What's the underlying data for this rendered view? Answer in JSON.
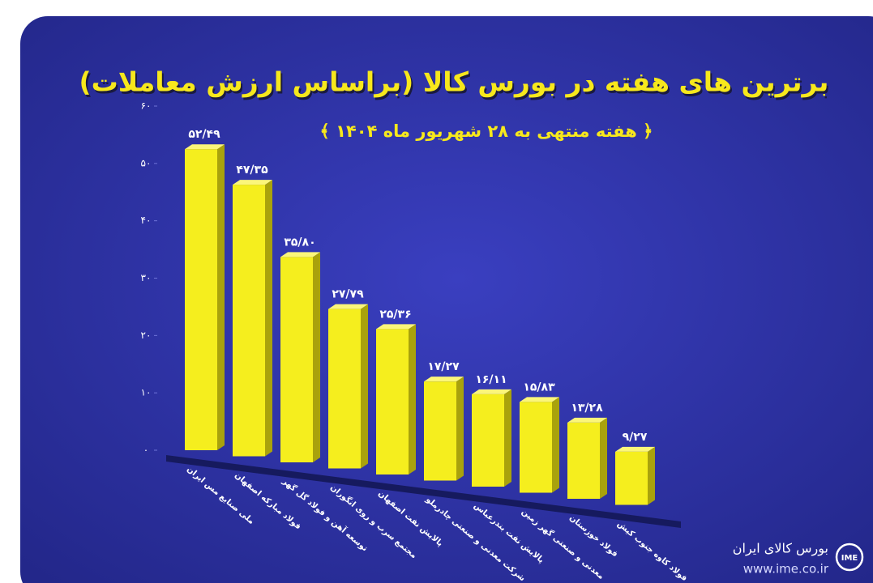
{
  "chart_data": {
    "type": "bar",
    "title": "برترین های هفته در بورس کالا (براساس ارزش معاملات)",
    "subtitle": "﴾ هفته منتهی به ۲۸ شهریور ماه ۱۴۰۴ ﴿",
    "categories": [
      "ملی صنایع مس ایران",
      "فولاد مبارکه اصفهان",
      "توسعه آهن و فولاد گل گهر",
      "مجتمع سرب و روی انگوران",
      "پالایش نفت اصفهان",
      "شرکت معدنی و صنعتی چادرملو",
      "پالایش نفت بندرعباس",
      "معدنی و صنعتی گهر زمین",
      "فولاد خوزستان",
      "فولاد کاوه جنوب کیش"
    ],
    "values": [
      52.49,
      47.35,
      35.8,
      27.79,
      25.36,
      17.27,
      16.11,
      15.83,
      13.28,
      9.27
    ],
    "value_labels": [
      "۵۲/۴۹",
      "۴۷/۳۵",
      "۳۵/۸۰",
      "۲۷/۷۹",
      "۲۵/۳۶",
      "۱۷/۲۷",
      "۱۶/۱۱",
      "۱۵/۸۳",
      "۱۳/۲۸",
      "۹/۲۷"
    ],
    "color": "#f5ee1e",
    "ylim": [
      0,
      60
    ],
    "yticks": [
      {
        "value": 0,
        "label": "۰"
      },
      {
        "value": 10,
        "label": "۱۰"
      },
      {
        "value": 20,
        "label": "۲۰"
      },
      {
        "value": 30,
        "label": "۳۰"
      },
      {
        "value": 40,
        "label": "۴۰"
      },
      {
        "value": 50,
        "label": "۵۰"
      },
      {
        "value": 60,
        "label": "۶۰"
      }
    ],
    "grid": false
  },
  "branding": {
    "name": "بورس کالای ایران",
    "url": "www.ime.co.ir",
    "logo": "IME"
  }
}
